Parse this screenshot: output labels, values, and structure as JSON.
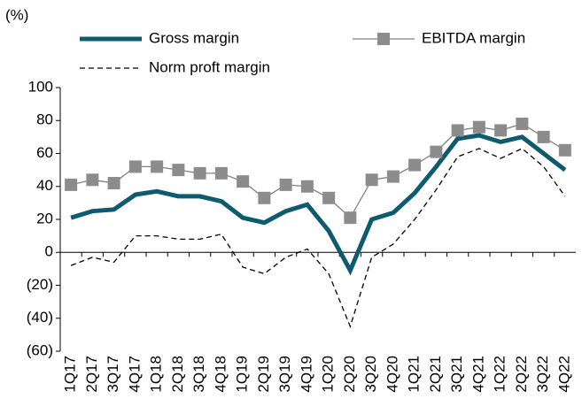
{
  "chart_data": {
    "type": "line",
    "y_label": "(%)",
    "categories": [
      "1Q17",
      "2Q17",
      "3Q17",
      "4Q17",
      "1Q18",
      "2Q18",
      "3Q18",
      "4Q18",
      "1Q19",
      "2Q19",
      "3Q19",
      "4Q19",
      "1Q20",
      "2Q20",
      "3Q20",
      "4Q20",
      "1Q21",
      "2Q21",
      "3Q21",
      "4Q21",
      "1Q22",
      "2Q22",
      "3Q22",
      "4Q22"
    ],
    "series": [
      {
        "name": "Gross margin",
        "color": "#0e5a6e",
        "style": "solid",
        "values": [
          21,
          25,
          26,
          35,
          37,
          34,
          34,
          31,
          21,
          18,
          25,
          29,
          13,
          -11,
          20,
          24,
          36,
          52,
          69,
          71,
          67,
          70,
          60,
          50
        ]
      },
      {
        "name": "EBITDA margin",
        "color": "#808080",
        "marker_color": "#8c8c8c",
        "style": "marker",
        "values": [
          41,
          44,
          42,
          52,
          52,
          50,
          48,
          48,
          43,
          33,
          41,
          40,
          33,
          21,
          44,
          46,
          53,
          61,
          74,
          76,
          74,
          78,
          70,
          62
        ]
      },
      {
        "name": "Norm proft margin",
        "color": "#000000",
        "style": "dashed",
        "values": [
          -8,
          -3,
          -6,
          10,
          10,
          8,
          8,
          11,
          -9,
          -13,
          -3,
          2,
          -13,
          -45,
          -3,
          5,
          20,
          38,
          58,
          63,
          57,
          63,
          52,
          34
        ]
      }
    ],
    "ylim": [
      -60,
      100
    ],
    "yticks": [
      {
        "value": -60,
        "label": "(60)"
      },
      {
        "value": -40,
        "label": "(40)"
      },
      {
        "value": -20,
        "label": "(20)"
      },
      0,
      20,
      40,
      60,
      80,
      100
    ]
  }
}
